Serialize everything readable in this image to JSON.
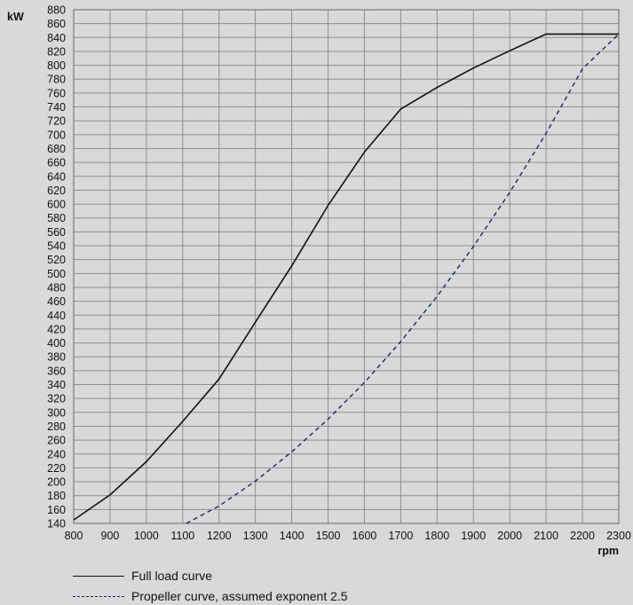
{
  "chart_data": {
    "type": "line",
    "xlabel": "rpm",
    "ylabel": "kW",
    "xlim": [
      800,
      2300
    ],
    "ylim": [
      140,
      880
    ],
    "x_ticks": [
      800,
      900,
      1000,
      1100,
      1200,
      1300,
      1400,
      1500,
      1600,
      1700,
      1800,
      1900,
      2000,
      2100,
      2200,
      2300
    ],
    "y_ticks": [
      140,
      160,
      180,
      200,
      220,
      240,
      260,
      280,
      300,
      320,
      340,
      360,
      380,
      400,
      420,
      440,
      460,
      480,
      500,
      520,
      540,
      560,
      580,
      600,
      620,
      640,
      660,
      680,
      700,
      720,
      740,
      760,
      780,
      800,
      820,
      840,
      860,
      880
    ],
    "grid": true,
    "legend_position": "bottom",
    "series": [
      {
        "name": "Full load curve",
        "style": "solid",
        "color": "#111111",
        "x": [
          800,
          900,
          1000,
          1100,
          1200,
          1300,
          1400,
          1500,
          1600,
          1700,
          1800,
          1900,
          2000,
          2100,
          2200,
          2300
        ],
        "y": [
          145,
          181,
          229,
          287,
          348,
          430,
          511,
          598,
          675,
          737,
          768,
          796,
          821,
          845,
          845,
          845
        ]
      },
      {
        "name": "Propeller curve, assumed exponent 2.5",
        "style": "dashed",
        "color": "#1a2a4a",
        "x": [
          1110,
          1200,
          1300,
          1400,
          1500,
          1600,
          1700,
          1800,
          1900,
          2000,
          2100,
          2200,
          2300
        ],
        "y": [
          140,
          165,
          201,
          243,
          290,
          343,
          402,
          467,
          539,
          617,
          702,
          795,
          845
        ]
      }
    ]
  }
}
